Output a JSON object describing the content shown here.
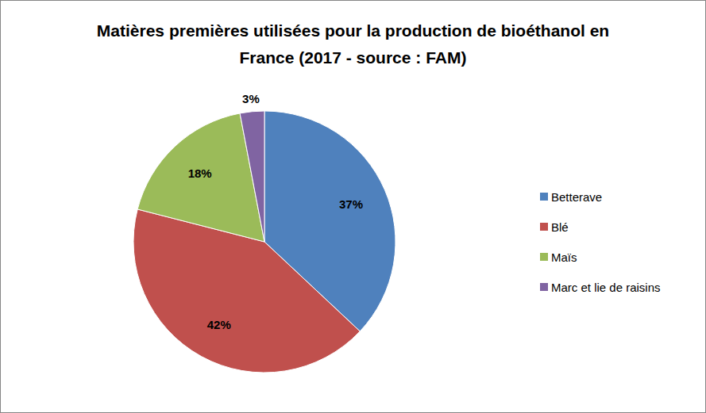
{
  "chart_data": {
    "type": "pie",
    "title": "Matières premières utilisées pour la production de bioéthanol en France (2017 - source : FAM)",
    "categories": [
      "Betterave",
      "Blé",
      "Maïs",
      "Marc et lie de raisins"
    ],
    "values": [
      37,
      42,
      18,
      3
    ],
    "value_labels": [
      "37%",
      "42%",
      "18%",
      "3%"
    ],
    "colors": [
      "#4f81bd",
      "#c0504d",
      "#9bbb59",
      "#8064a2"
    ],
    "data_labels": true,
    "legend": "right"
  }
}
